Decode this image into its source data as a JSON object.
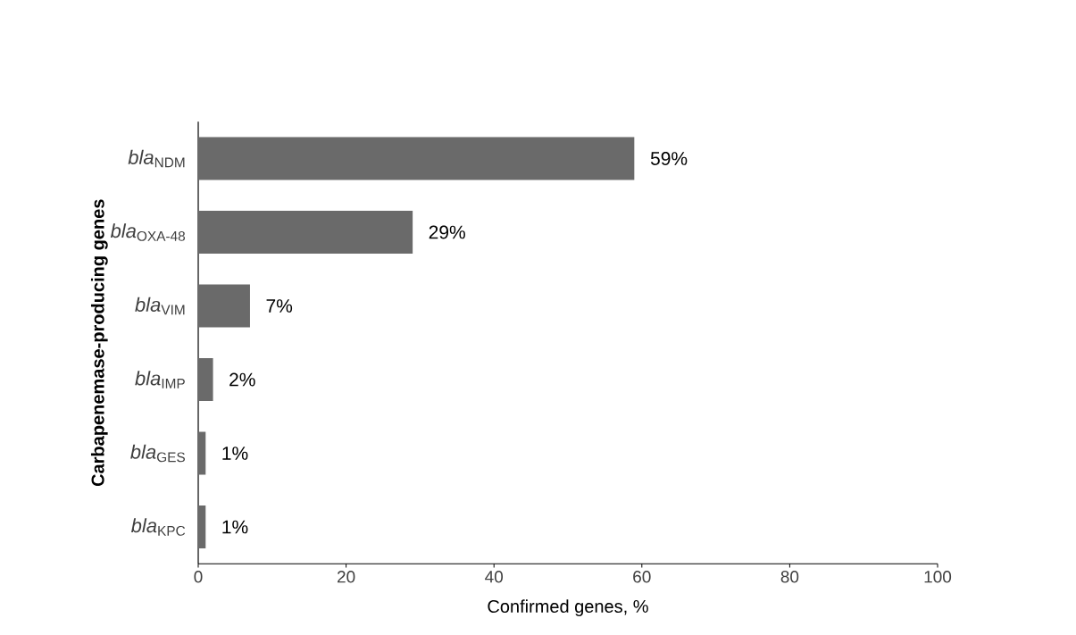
{
  "chart_data": {
    "type": "bar",
    "orientation": "horizontal",
    "categories": [
      "*bla*$_{NDM}$",
      "*bla*$_{OXA-48}$",
      "*bla*$_{VIM}$",
      "*bla*$_{IMP}$",
      "*bla*$_{GES}$",
      "*bla*$_{KPC}$"
    ],
    "values": [
      59,
      29,
      7,
      2,
      1,
      1
    ],
    "value_labels": [
      "59%",
      "29%",
      "7%",
      "2%",
      "1%",
      "1%"
    ],
    "color": "#6a6a6a",
    "xlim": [
      0,
      100
    ],
    "xticks": [
      0,
      20,
      40,
      60,
      80,
      100
    ],
    "xlabel": "Confirmed genes, %",
    "ylabel": "Carbapenemase-producing genes"
  }
}
